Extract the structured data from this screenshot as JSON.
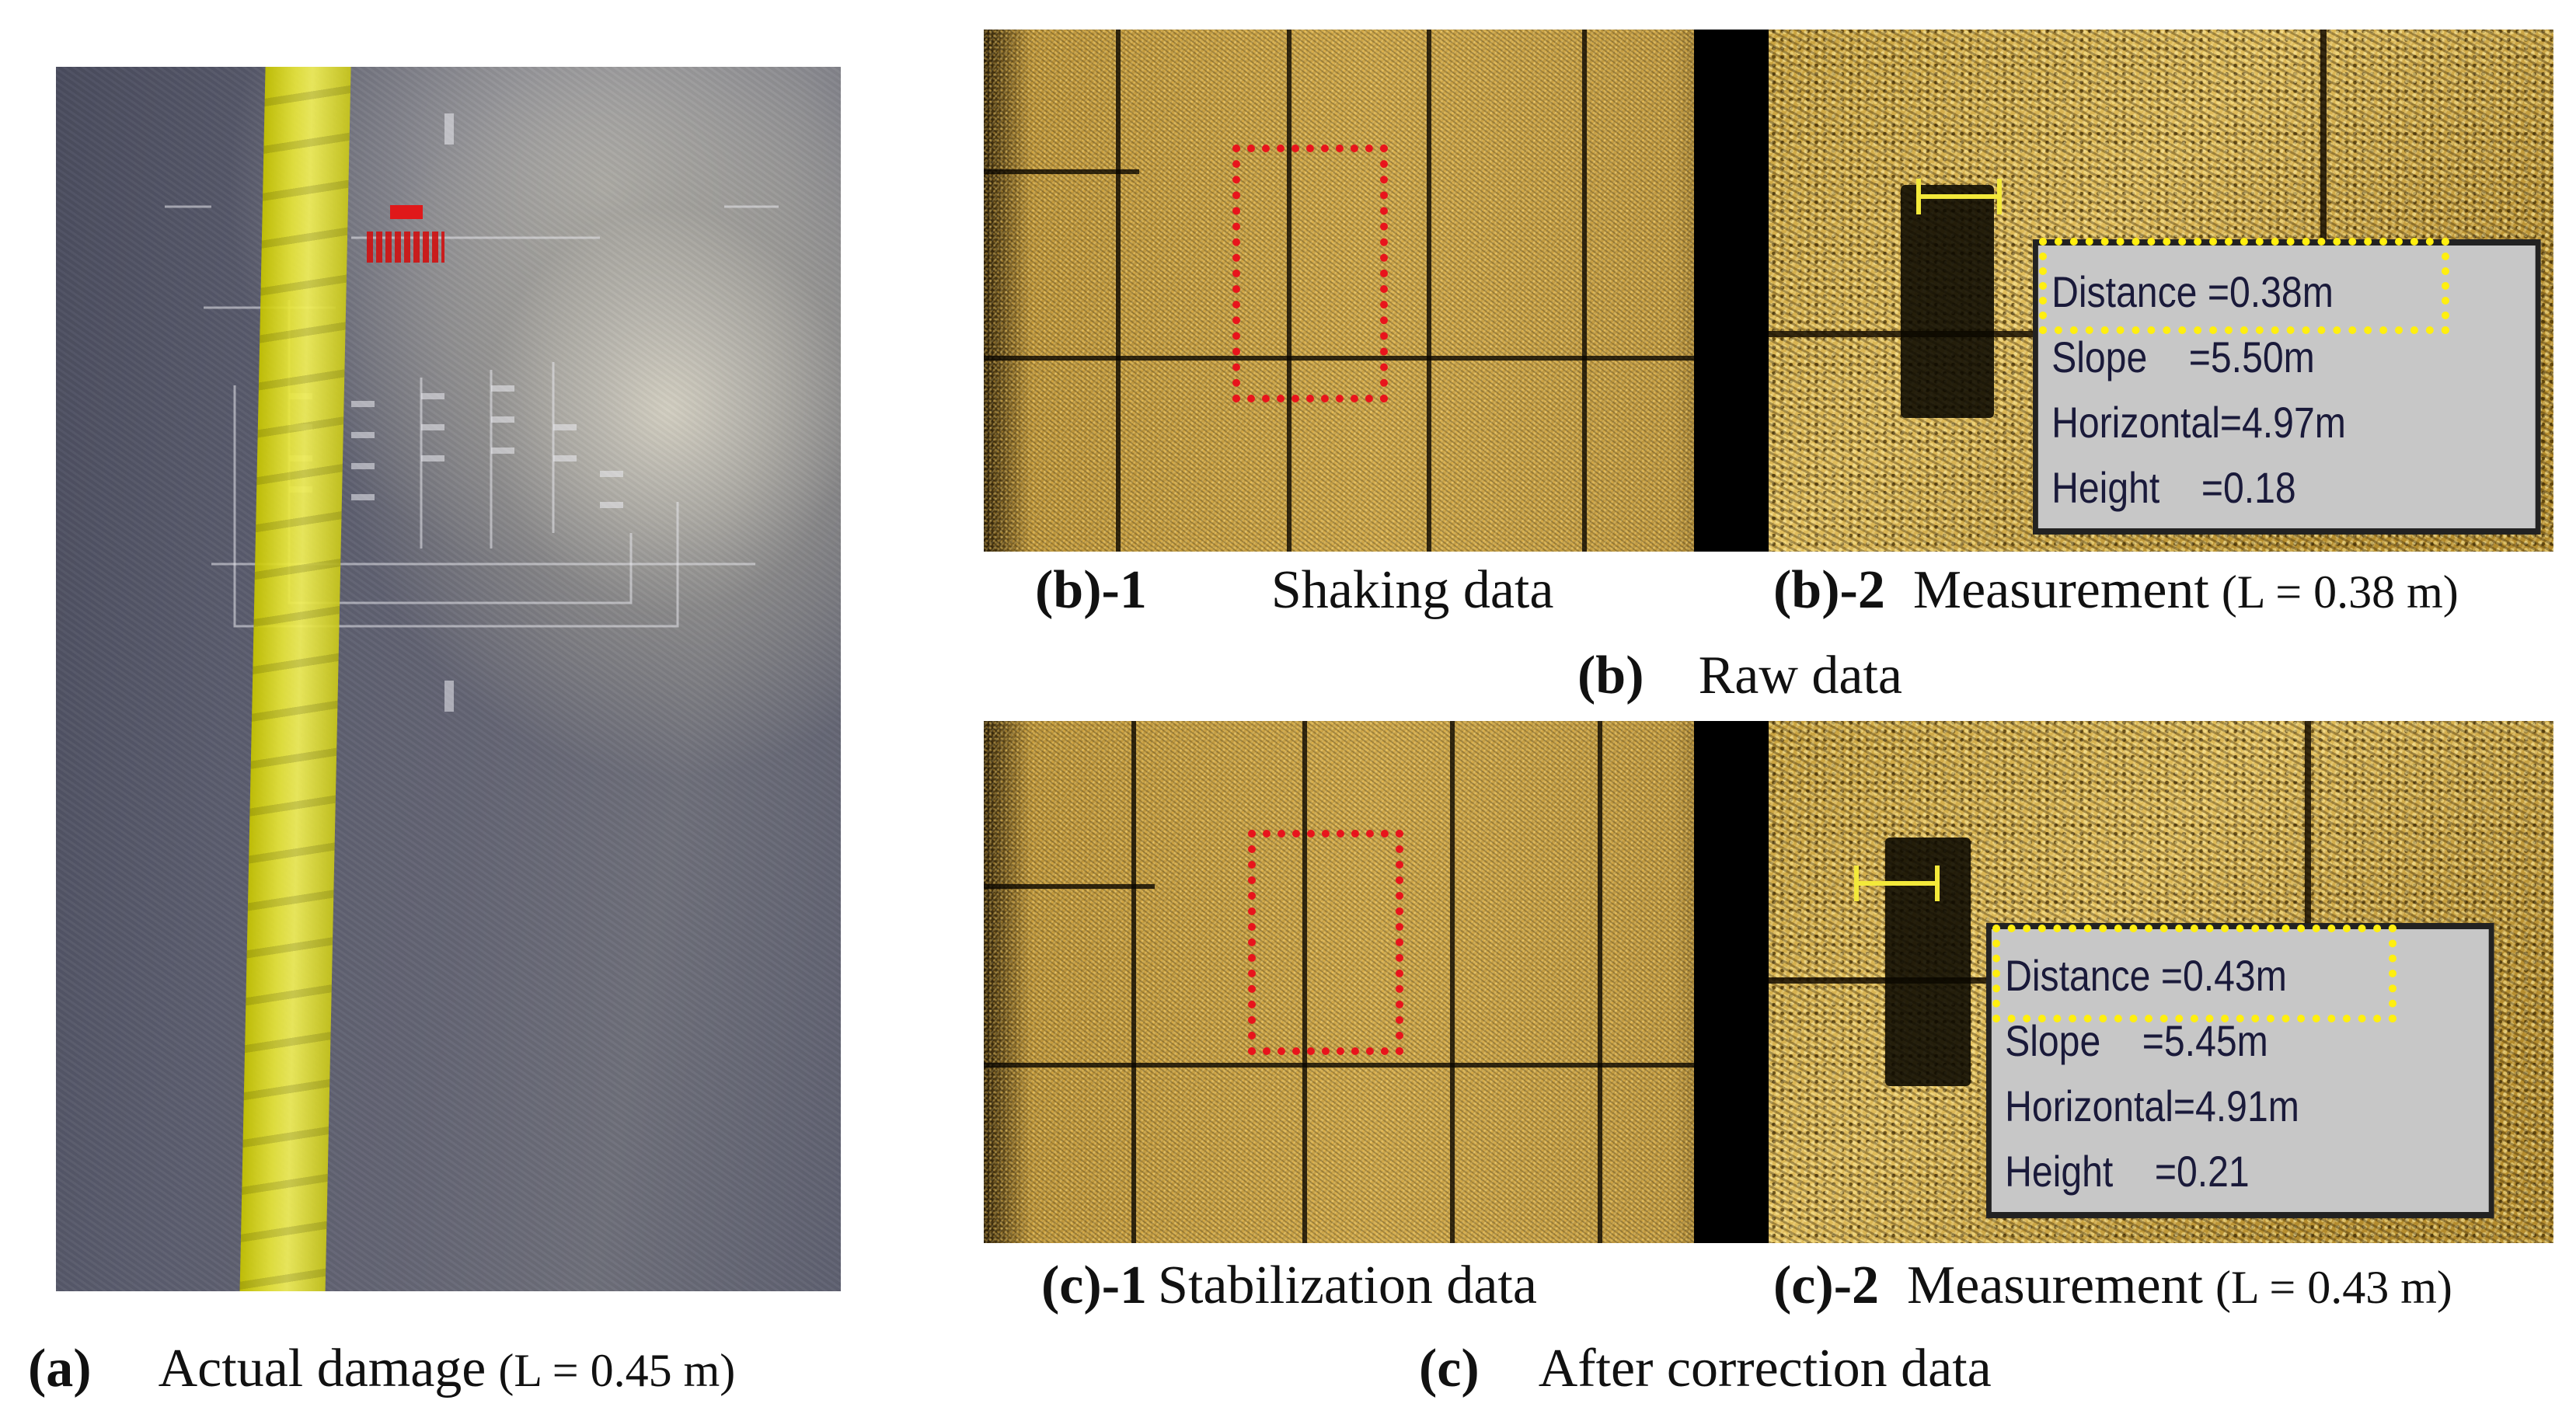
{
  "figure": {
    "panel_a": {
      "letter": "(a)",
      "caption": "Actual damage",
      "length_note": "(L = 0.45 m)"
    },
    "panel_b": {
      "letter": "(b)",
      "caption": "Raw data",
      "sub1": {
        "id": "(b)-1",
        "caption": "Shaking data"
      },
      "sub2": {
        "id": "(b)-2",
        "caption": "Measurement",
        "length_note": "(L = 0.38 m)",
        "readout": {
          "distance": "Distance =0.38m",
          "slope": "Slope    =5.50m",
          "horizontal": "Horizontal=4.97m",
          "height": "Height    =0.18"
        }
      }
    },
    "panel_c": {
      "letter": "(c)",
      "caption": "After correction data",
      "sub1": {
        "id": "(c)-1",
        "caption": "Stabilization data"
      },
      "sub2": {
        "id": "(c)-2",
        "caption": "Measurement",
        "length_note": "(L = 0.43 m)",
        "readout": {
          "distance": "Distance =0.43m",
          "slope": "Slope    =5.45m",
          "horizontal": "Horizontal=4.91m",
          "height": "Height    =0.21"
        }
      }
    },
    "colors": {
      "highlight_red": "#e8141c",
      "highlight_yellow": "#ffef10",
      "sonar_gold": "#c9a44a"
    }
  }
}
